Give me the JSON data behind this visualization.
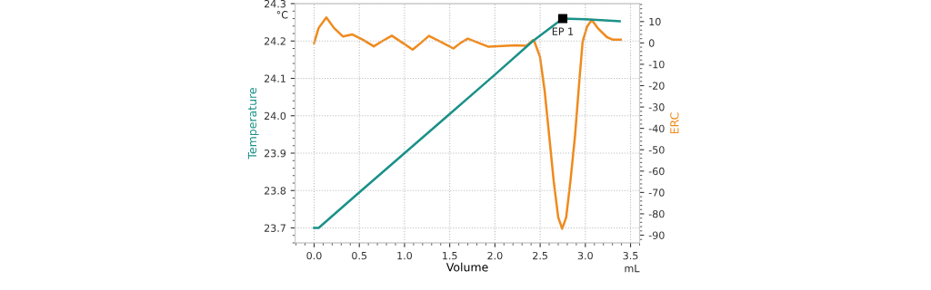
{
  "chart_data": {
    "type": "line",
    "xlabel": "Volume",
    "ylabel": "Temperature",
    "y2label": "ERC",
    "xlim": [
      -0.21,
      3.6
    ],
    "xticks": [
      {
        "value": 0,
        "label": "0.0"
      },
      0.5,
      {
        "value": 1,
        "label": "1.0"
      },
      1.5,
      {
        "value": 2,
        "label": "2.0"
      },
      2.5,
      {
        "value": 3,
        "label": "3.0"
      },
      3.5
    ],
    "ylim": [
      23.66,
      24.3
    ],
    "yticks": [
      23.7,
      23.8,
      23.9,
      {
        "value": 24,
        "label": "24.0"
      },
      24.1,
      24.2,
      24.3
    ],
    "y2lim": [
      -93.6,
      18.4
    ],
    "y2ticks": [
      -90,
      -80,
      -70,
      -60,
      -50,
      -40,
      -30,
      -20,
      -10,
      0,
      10
    ],
    "grid": true,
    "marker": "none",
    "line_style": "solid",
    "series": [
      {
        "color": "#1a9188",
        "x": [
          0,
          0.05,
          0.5,
          1.0,
          1.5,
          2.0,
          2.42,
          2.75,
          3.0,
          3.38
        ],
        "values": [
          23.7,
          23.7,
          23.795,
          23.9,
          24.005,
          24.11,
          24.2,
          24.26,
          24.258,
          24.253
        ]
      },
      {
        "color": "#f08a1c",
        "axis": "y2",
        "x": [
          0,
          0.05,
          0.135,
          0.22,
          0.32,
          0.42,
          0.54,
          0.66,
          0.76,
          0.86,
          0.98,
          1.09,
          1.18,
          1.27,
          1.4,
          1.54,
          1.62,
          1.7,
          1.82,
          1.93,
          2.23,
          2.35,
          2.42,
          2.437,
          2.498,
          2.549,
          2.6,
          2.65,
          2.7,
          2.744,
          2.788,
          2.835,
          2.886,
          2.936,
          2.97,
          3.02,
          3.071,
          3.138,
          3.239,
          3.306,
          3.391
        ],
        "values": [
          0,
          7,
          11.9,
          7,
          3,
          4,
          1.5,
          -1.6,
          1,
          3.4,
          0,
          -3.1,
          0,
          3.3,
          0.5,
          -2.6,
          0,
          2,
          0,
          -1.8,
          -1.1,
          -1.3,
          1.3,
          0.6,
          -6.5,
          -22.1,
          -43.4,
          -64.7,
          -81.7,
          -87,
          -81.7,
          -64.7,
          -43.4,
          -16.5,
          0.6,
          7.7,
          10.8,
          6.9,
          2.7,
          1.5,
          1.5
        ]
      },
      {
        "type": "scatter",
        "marker": "square",
        "color": "#000000",
        "x": [
          2.75
        ],
        "values": [
          24.26
        ]
      }
    ],
    "annotations": [
      {
        "text": "EP 1",
        "x": 2.75,
        "y": 24.26
      },
      "°C",
      "mL"
    ]
  }
}
